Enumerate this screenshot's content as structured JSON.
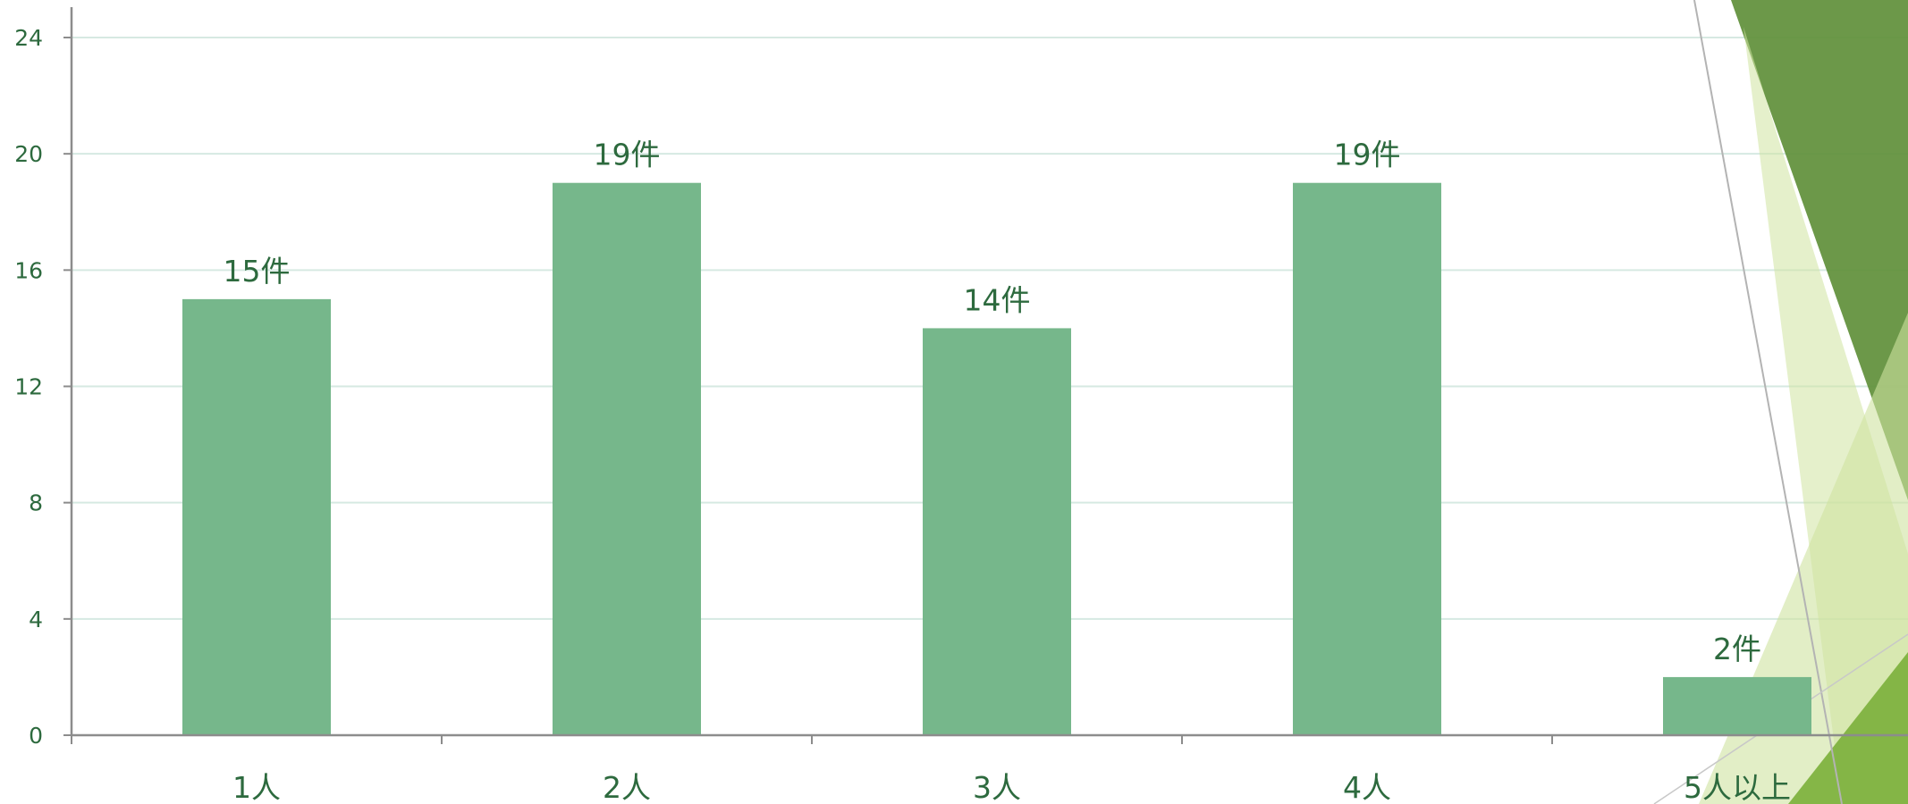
{
  "colors": {
    "bar": "#76b78b",
    "text": "#2d6a3e",
    "grid": "#d6e9e2",
    "axis": "#8c8c8c",
    "deco_dark": "#5f8f3a",
    "deco_mid": "#7fb240",
    "deco_light": "#cfe3a0"
  },
  "chart_data": {
    "type": "bar",
    "categories": [
      "1人",
      "2人",
      "3人",
      "4人",
      "5人以上"
    ],
    "values": [
      15,
      19,
      14,
      19,
      2
    ],
    "data_labels": [
      "15件",
      "19件",
      "14件",
      "19件",
      "2件"
    ],
    "ylim": [
      0,
      24
    ],
    "yticks": [
      0,
      4,
      8,
      12,
      16,
      20,
      24
    ],
    "ytick_labels": [
      "0",
      "4",
      "8",
      "12",
      "16",
      "20",
      "24"
    ],
    "grid": true,
    "legend": "none",
    "title": "",
    "xlabel": "",
    "ylabel": ""
  }
}
